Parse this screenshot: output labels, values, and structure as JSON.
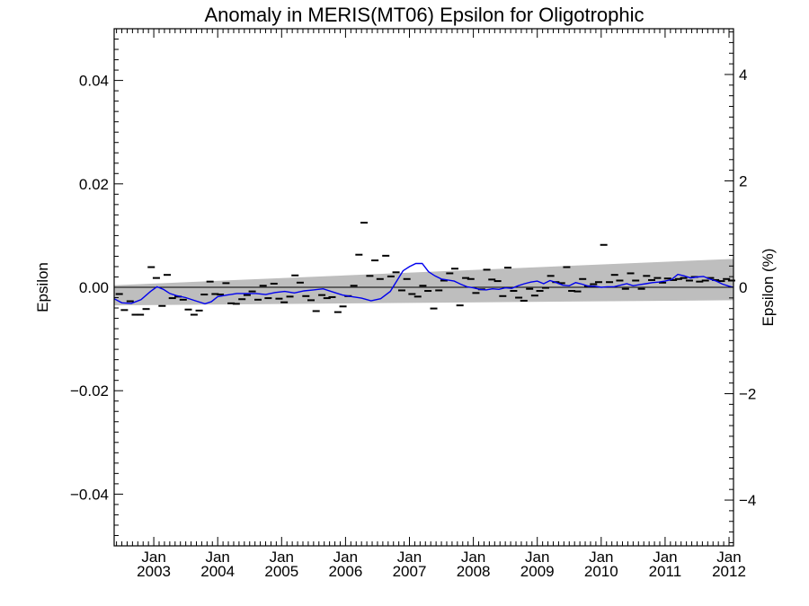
{
  "chart_data": {
    "type": "line",
    "title": "Anomaly in MERIS(MT06) Epsilon for Oligotrophic",
    "ylabel": "Epsilon",
    "y2label": "Epsilon (%)",
    "ylim": [
      -0.05,
      0.05
    ],
    "y2lim": [
      -4.86,
      4.86
    ],
    "xlim": [
      2002.38,
      2012.07
    ],
    "y_ticks": [
      {
        "value": 0.04,
        "label": "0.04"
      },
      {
        "value": 0.02,
        "label": "0.02"
      },
      {
        "value": 0.0,
        "label": "0.00"
      },
      {
        "value": -0.02,
        "label": "−0.02"
      },
      {
        "value": -0.04,
        "label": "−0.04"
      }
    ],
    "y2_ticks": [
      {
        "value": 4,
        "label": "4"
      },
      {
        "value": 2,
        "label": "2"
      },
      {
        "value": 0,
        "label": "0"
      },
      {
        "value": -2,
        "label": "−2"
      },
      {
        "value": -4,
        "label": "−4"
      }
    ],
    "x_ticks": [
      {
        "value": 2003.0,
        "label": "Jan",
        "sublabel": "2003"
      },
      {
        "value": 2004.0,
        "label": "Jan",
        "sublabel": "2004"
      },
      {
        "value": 2005.0,
        "label": "Jan",
        "sublabel": "2005"
      },
      {
        "value": 2006.0,
        "label": "Jan",
        "sublabel": "2006"
      },
      {
        "value": 2007.0,
        "label": "Jan",
        "sublabel": "2007"
      },
      {
        "value": 2008.0,
        "label": "Jan",
        "sublabel": "2008"
      },
      {
        "value": 2009.0,
        "label": "Jan",
        "sublabel": "2009"
      },
      {
        "value": 2010.0,
        "label": "Jan",
        "sublabel": "2010"
      },
      {
        "value": 2011.0,
        "label": "Jan",
        "sublabel": "2011"
      },
      {
        "value": 2012.0,
        "label": "Jan",
        "sublabel": "2012"
      }
    ],
    "confidence_band": {
      "x": [
        2002.38,
        2012.07
      ],
      "upper": [
        0.0004,
        0.0055
      ],
      "lower": [
        -0.0035,
        -0.0025
      ],
      "color": "#bebebe"
    },
    "zero_line": 0.0,
    "series": [
      {
        "style": "markers",
        "marker": "dash",
        "color": "#000000",
        "x": [
          2002.46,
          2002.54,
          2002.63,
          2002.71,
          2002.79,
          2002.88,
          2002.96,
          2003.04,
          2003.13,
          2003.21,
          2003.29,
          2003.38,
          2003.46,
          2003.54,
          2003.63,
          2003.71,
          2003.79,
          2003.88,
          2003.96,
          2004.04,
          2004.13,
          2004.21,
          2004.29,
          2004.38,
          2004.46,
          2004.54,
          2004.63,
          2004.71,
          2004.79,
          2004.88,
          2004.96,
          2005.04,
          2005.13,
          2005.21,
          2005.29,
          2005.38,
          2005.46,
          2005.54,
          2005.63,
          2005.71,
          2005.79,
          2005.88,
          2005.96,
          2006.04,
          2006.13,
          2006.21,
          2006.29,
          2006.38,
          2006.46,
          2006.54,
          2006.63,
          2006.71,
          2006.79,
          2006.88,
          2006.96,
          2007.04,
          2007.13,
          2007.21,
          2007.29,
          2007.38,
          2007.46,
          2007.54,
          2007.63,
          2007.71,
          2007.79,
          2007.88,
          2007.96,
          2008.04,
          2008.13,
          2008.21,
          2008.29,
          2008.38,
          2008.46,
          2008.54,
          2008.63,
          2008.71,
          2008.79,
          2008.88,
          2008.96,
          2009.04,
          2009.13,
          2009.21,
          2009.29,
          2009.38,
          2009.46,
          2009.54,
          2009.63,
          2009.71,
          2009.79,
          2009.88,
          2009.96,
          2010.04,
          2010.13,
          2010.21,
          2010.29,
          2010.38,
          2010.46,
          2010.54,
          2010.63,
          2010.71,
          2010.79,
          2010.88,
          2010.96,
          2011.04,
          2011.13,
          2011.21,
          2011.29,
          2011.38,
          2011.46,
          2011.54,
          2011.63,
          2011.71,
          2011.79,
          2011.88,
          2011.96,
          2012.04
        ],
        "y": [
          -0.0013,
          -0.0044,
          -0.0027,
          -0.0053,
          -0.0053,
          -0.0042,
          0.0039,
          0.0018,
          -0.0036,
          0.0024,
          -0.0021,
          -0.0018,
          -0.0024,
          -0.0043,
          -0.0053,
          -0.0045,
          -0.0014,
          0.0011,
          -0.0013,
          -0.0014,
          0.0008,
          -0.0031,
          -0.0032,
          -0.0023,
          -0.0015,
          -0.0008,
          -0.0024,
          0.0003,
          -0.0021,
          0.0007,
          -0.0022,
          -0.0029,
          -0.0018,
          0.0023,
          0.0009,
          -0.0017,
          -0.0025,
          -0.0046,
          -0.0015,
          -0.0021,
          -0.0019,
          -0.0048,
          -0.0037,
          -0.0017,
          0.0003,
          0.0063,
          0.0125,
          0.0022,
          0.0052,
          0.0016,
          0.0061,
          0.0021,
          0.0029,
          -0.0006,
          0.0016,
          -0.0013,
          -0.0018,
          0.0003,
          -0.0007,
          -0.0041,
          -0.0006,
          0.0013,
          0.0027,
          0.0036,
          -0.0035,
          0.0018,
          0.0016,
          -0.0011,
          -0.0004,
          0.0034,
          0.0015,
          0.0012,
          -0.0017,
          0.0038,
          -0.0007,
          -0.002,
          -0.0026,
          -0.0003,
          -0.0016,
          -0.0007,
          -0.0001,
          0.0022,
          0.001,
          0.0008,
          0.0039,
          -0.0007,
          -0.0008,
          0.0016,
          0.0002,
          0.0006,
          0.001,
          0.0082,
          0.001,
          0.0024,
          0.0013,
          -0.0003,
          0.0027,
          0.0013,
          -0.0003,
          0.0022,
          0.0014,
          0.0018,
          0.0009,
          0.0017,
          0.0014,
          0.0016,
          0.0018,
          0.0013,
          0.002,
          0.0011,
          0.0013,
          0.0018,
          0.0014,
          0.0012,
          0.0016,
          0.0013
        ]
      },
      {
        "style": "line",
        "color": "#0000ee",
        "x": [
          2002.38,
          2002.5,
          2002.65,
          2002.8,
          2002.95,
          2003.05,
          2003.15,
          2003.25,
          2003.35,
          2003.5,
          2003.65,
          2003.8,
          2003.9,
          2004.0,
          2004.15,
          2004.3,
          2004.45,
          2004.6,
          2004.75,
          2004.9,
          2005.05,
          2005.2,
          2005.35,
          2005.5,
          2005.65,
          2005.8,
          2005.95,
          2006.1,
          2006.25,
          2006.4,
          2006.55,
          2006.7,
          2006.8,
          2006.9,
          2007.0,
          2007.1,
          2007.2,
          2007.3,
          2007.4,
          2007.5,
          2007.6,
          2007.7,
          2007.8,
          2007.9,
          2008.0,
          2008.1,
          2008.2,
          2008.3,
          2008.4,
          2008.5,
          2008.6,
          2008.7,
          2008.8,
          2008.9,
          2009.0,
          2009.1,
          2009.2,
          2009.3,
          2009.4,
          2009.5,
          2009.6,
          2009.7,
          2009.8,
          2009.9,
          2010.0,
          2010.1,
          2010.2,
          2010.3,
          2010.4,
          2010.5,
          2010.6,
          2010.7,
          2010.8,
          2010.9,
          2011.0,
          2011.1,
          2011.2,
          2011.3,
          2011.4,
          2011.5,
          2011.6,
          2011.7,
          2011.8,
          2011.9,
          2012.0,
          2012.07
        ],
        "y": [
          -0.0022,
          -0.003,
          -0.0031,
          -0.0024,
          -0.0008,
          0.0001,
          -0.0004,
          -0.0012,
          -0.0016,
          -0.002,
          -0.0026,
          -0.0032,
          -0.0028,
          -0.0018,
          -0.0015,
          -0.0012,
          -0.0012,
          -0.0012,
          -0.0014,
          -0.001,
          -0.0008,
          -0.0011,
          -0.0007,
          -0.0005,
          -0.0003,
          -0.0009,
          -0.0015,
          -0.0018,
          -0.0021,
          -0.0026,
          -0.0022,
          -0.0008,
          0.0012,
          0.0032,
          0.004,
          0.0046,
          0.0046,
          0.003,
          0.0022,
          0.0016,
          0.0014,
          0.0012,
          0.0006,
          0.0001,
          -0.0001,
          -0.0004,
          -0.0005,
          -0.0003,
          -0.0004,
          -0.0001,
          -0.0002,
          0.0003,
          0.0007,
          0.001,
          0.0012,
          0.0007,
          0.0013,
          0.0009,
          0.0004,
          0.0003,
          0.0009,
          0.0006,
          0.0002,
          0.0002,
          0.0,
          0.0001,
          0.0001,
          0.0004,
          0.0007,
          0.0003,
          0.0005,
          0.0007,
          0.0009,
          0.001,
          0.0012,
          0.0015,
          0.0025,
          0.0022,
          0.0018,
          0.002,
          0.0021,
          0.0016,
          0.0012,
          0.0006,
          0.0002,
          0.0
        ]
      }
    ]
  }
}
